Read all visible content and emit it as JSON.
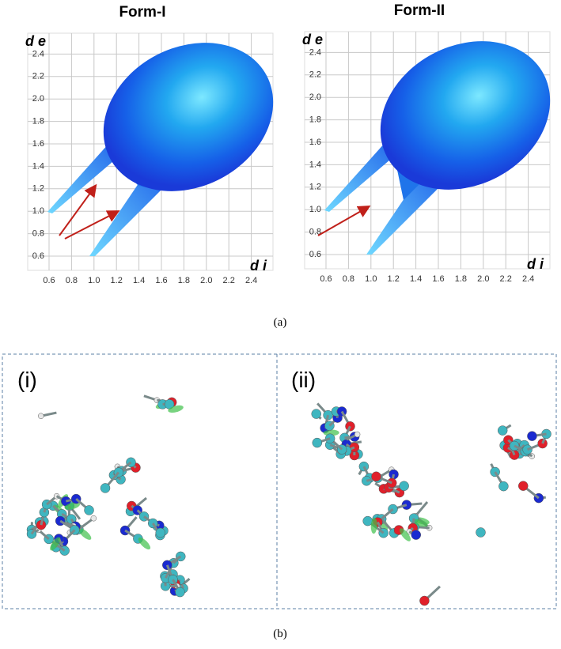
{
  "figure_a": {
    "panels": [
      {
        "title": "Form-I",
        "y_axis_label": "d e",
        "x_axis_label": "d i",
        "xticks": [
          "0.6",
          "0.8",
          "1.0",
          "1.2",
          "1.4",
          "1.6",
          "1.8",
          "2.0",
          "2.2",
          "2.4"
        ],
        "yticks": [
          "0.6",
          "0.8",
          "1.0",
          "1.2",
          "1.4",
          "1.6",
          "1.8",
          "2.0",
          "2.2",
          "2.4"
        ]
      },
      {
        "title": "Form-II",
        "y_axis_label": "d e",
        "x_axis_label": "d i",
        "xticks": [
          "0.6",
          "0.8",
          "1.0",
          "1.2",
          "1.4",
          "1.6",
          "1.8",
          "2.0",
          "2.2",
          "2.4"
        ],
        "yticks": [
          "0.6",
          "0.8",
          "1.0",
          "1.2",
          "1.4",
          "1.6",
          "1.8",
          "2.0",
          "2.2",
          "2.4"
        ]
      }
    ],
    "caption": "(a)"
  },
  "figure_b": {
    "panels": [
      {
        "label": "(i)"
      },
      {
        "label": "(ii)"
      }
    ],
    "caption": "(b)"
  }
}
